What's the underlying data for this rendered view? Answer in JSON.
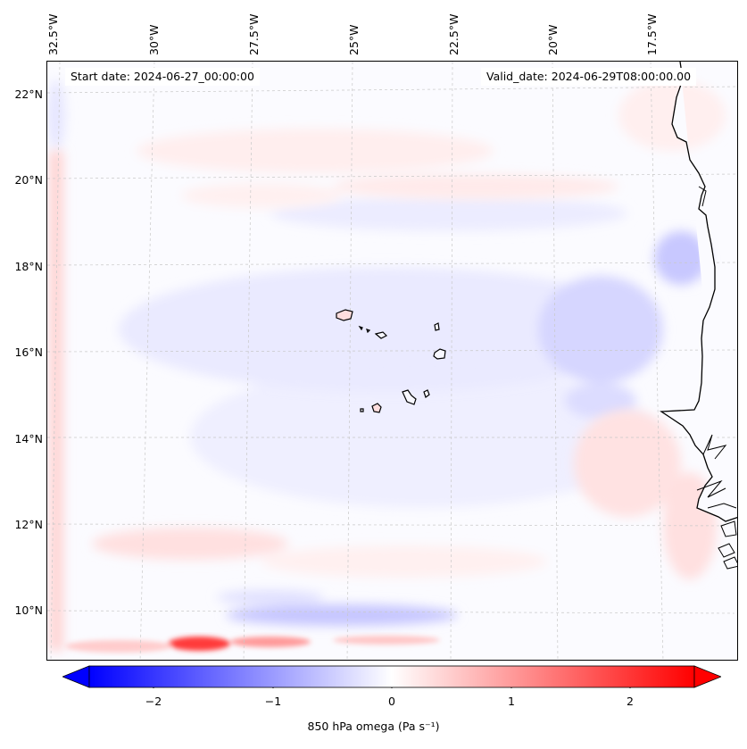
{
  "map": {
    "region": "Eastern tropical Atlantic / West Africa coast",
    "longitude_labels": [
      "32.5°W",
      "30°W",
      "27.5°W",
      "25°W",
      "22.5°W",
      "20°W",
      "17.5°W"
    ],
    "latitude_labels": [
      "22°N",
      "20°N",
      "18°N",
      "16°N",
      "14°N",
      "12°N",
      "10°N"
    ],
    "start_date": "Start date: 2024-06-27_00:00:00",
    "valid_date": "Valid_date: 2024-06-29T08:00:00.00",
    "gridlines": true
  },
  "colorbar": {
    "label": "850 hPa omega (Pa s⁻¹)",
    "ticks": [
      "−2",
      "−1",
      "0",
      "1",
      "2"
    ],
    "range": [
      -2.5,
      2.5
    ],
    "colormap": "bwr",
    "colors": {
      "min": "#0000ff",
      "mid": "#ffffff",
      "max": "#ff0000"
    }
  }
}
